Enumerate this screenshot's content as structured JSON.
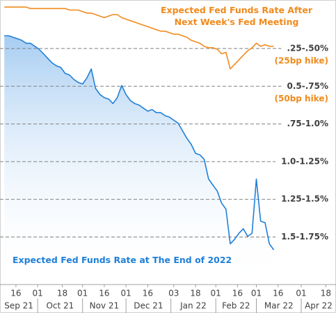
{
  "chart_data": {
    "type": "line",
    "x": [
      "2021-09-08",
      "2021-09-11",
      "2021-09-14",
      "2021-09-17",
      "2021-09-20",
      "2021-09-23",
      "2021-09-26",
      "2021-09-29",
      "2021-10-02",
      "2021-10-05",
      "2021-10-08",
      "2021-10-11",
      "2021-10-14",
      "2021-10-17",
      "2021-10-20",
      "2021-10-23",
      "2021-10-26",
      "2021-10-29",
      "2021-11-01",
      "2021-11-04",
      "2021-11-07",
      "2021-11-10",
      "2021-11-13",
      "2021-11-16",
      "2021-11-19",
      "2021-11-22",
      "2021-11-25",
      "2021-11-28",
      "2021-12-01",
      "2021-12-04",
      "2021-12-07",
      "2021-12-10",
      "2021-12-13",
      "2021-12-16",
      "2021-12-19",
      "2021-12-22",
      "2021-12-25",
      "2021-12-28",
      "2021-12-31",
      "2022-01-03",
      "2022-01-06",
      "2022-01-09",
      "2022-01-12",
      "2022-01-15",
      "2022-01-18",
      "2022-01-21",
      "2022-01-24",
      "2022-01-27",
      "2022-01-30",
      "2022-02-02",
      "2022-02-05",
      "2022-02-08",
      "2022-02-11",
      "2022-02-14",
      "2022-02-17",
      "2022-02-20",
      "2022-02-23",
      "2022-02-26",
      "2022-03-01",
      "2022-03-04",
      "2022-03-07",
      "2022-03-10",
      "2022-03-13"
    ],
    "series": [
      {
        "name": "Expected Fed Funds Rate at The End of 2022",
        "color": "#1f7fd8",
        "fill": true,
        "values": [
          0.29,
          0.29,
          0.3,
          0.31,
          0.32,
          0.34,
          0.34,
          0.36,
          0.38,
          0.41,
          0.44,
          0.47,
          0.49,
          0.5,
          0.54,
          0.55,
          0.58,
          0.6,
          0.61,
          0.57,
          0.51,
          0.64,
          0.68,
          0.7,
          0.71,
          0.74,
          0.7,
          0.62,
          0.68,
          0.72,
          0.74,
          0.75,
          0.77,
          0.79,
          0.78,
          0.8,
          0.8,
          0.82,
          0.83,
          0.85,
          0.87,
          0.92,
          0.97,
          1.01,
          1.07,
          1.08,
          1.11,
          1.24,
          1.28,
          1.32,
          1.4,
          1.44,
          1.67,
          1.64,
          1.6,
          1.57,
          1.62,
          1.6,
          1.24,
          1.52,
          1.53,
          1.67,
          1.71
        ]
      },
      {
        "name": "Expected Fed Funds Rate After\nNext Week's Fed Meeting",
        "color": "#f08a1c",
        "fill": false,
        "values": [
          0.1,
          0.1,
          0.1,
          0.1,
          0.1,
          0.1,
          0.11,
          0.11,
          0.11,
          0.11,
          0.11,
          0.11,
          0.11,
          0.11,
          0.11,
          0.12,
          0.12,
          0.12,
          0.13,
          0.14,
          0.14,
          0.15,
          0.16,
          0.17,
          0.16,
          0.15,
          0.15,
          0.17,
          0.18,
          0.19,
          0.2,
          0.21,
          0.22,
          0.23,
          0.24,
          0.25,
          0.26,
          0.26,
          0.27,
          0.28,
          0.28,
          0.29,
          0.3,
          0.32,
          0.33,
          0.34,
          0.36,
          0.37,
          0.37,
          0.38,
          0.41,
          0.4,
          0.51,
          0.48,
          0.45,
          0.42,
          0.39,
          0.37,
          0.34,
          0.36,
          0.35,
          0.36,
          0.36
        ]
      }
    ],
    "xlim": [
      "2021-09-05",
      "2022-04-25"
    ],
    "xticks": [
      {
        "value": "2021-09-16",
        "label": "16"
      },
      {
        "value": "2021-10-01",
        "label": "01"
      },
      {
        "value": "2021-10-18",
        "label": "18"
      },
      {
        "value": "2021-11-01",
        "label": "01"
      },
      {
        "value": "2021-11-16",
        "label": "16"
      },
      {
        "value": "2021-12-01",
        "label": "01"
      },
      {
        "value": "2021-12-16",
        "label": "16"
      },
      {
        "value": "2022-01-03",
        "label": "03"
      },
      {
        "value": "2022-01-18",
        "label": "18"
      },
      {
        "value": "2022-02-01",
        "label": "01"
      },
      {
        "value": "2022-02-16",
        "label": "16"
      },
      {
        "value": "2022-03-01",
        "label": "01"
      },
      {
        "value": "2022-03-16",
        "label": "16"
      },
      {
        "value": "2022-04-01",
        "label": "01"
      },
      {
        "value": "2022-04-18",
        "label": "18"
      }
    ],
    "xticks_major": [
      {
        "value": "2021-09-01",
        "label": "Sep 21"
      },
      {
        "value": "2021-10-01",
        "label": "Oct 21"
      },
      {
        "value": "2021-11-01",
        "label": "Nov 21"
      },
      {
        "value": "2021-12-01",
        "label": "Dec 21"
      },
      {
        "value": "2022-01-01",
        "label": "Jan 22"
      },
      {
        "value": "2022-02-01",
        "label": "Feb 22"
      },
      {
        "value": "2022-03-01",
        "label": "Mar 22"
      },
      {
        "value": "2022-04-01",
        "label": "Apr 22"
      }
    ],
    "ylim": [
      1.94,
      0.09
    ],
    "yticks": [
      {
        "value": 0.375,
        "label": ".25-.50%"
      },
      {
        "value": 0.625,
        "label": "0.5-.75%"
      },
      {
        "value": 0.875,
        "label": ".75-1.0%"
      },
      {
        "value": 1.125,
        "label": "1.0-1.25%"
      },
      {
        "value": 1.375,
        "label": "1.25-1.5%"
      },
      {
        "value": 1.625,
        "label": "1.5-1.75%"
      }
    ],
    "annotations": [
      "(25bp hike)",
      "(50bp hike)"
    ],
    "grid": true
  }
}
